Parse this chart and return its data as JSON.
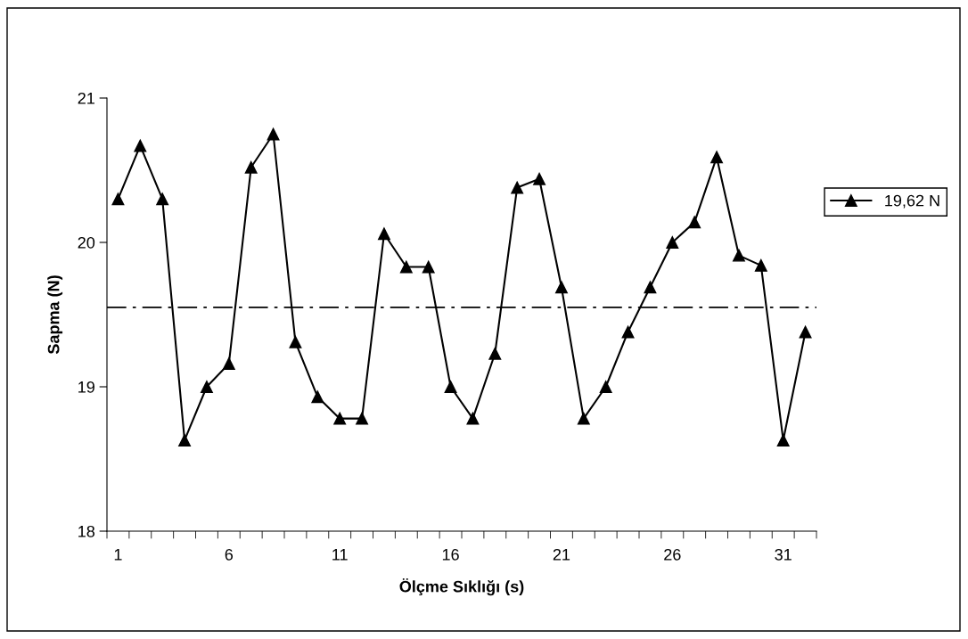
{
  "chart_data": {
    "type": "line",
    "xlabel": "Ölçme Sıklığı (s)",
    "ylabel": "Sapma (N)",
    "categories": [
      "1",
      null,
      null,
      null,
      null,
      "6",
      null,
      null,
      null,
      null,
      "11",
      null,
      null,
      null,
      null,
      "16",
      null,
      null,
      null,
      null,
      "21",
      null,
      null,
      null,
      null,
      "26",
      null,
      null,
      null,
      null,
      "31",
      null
    ],
    "series": [
      {
        "name": "19,62 N",
        "color": "#000000",
        "values": [
          20.3,
          20.67,
          20.3,
          18.63,
          19.0,
          19.16,
          20.52,
          20.75,
          19.31,
          18.93,
          18.78,
          18.78,
          20.06,
          19.83,
          19.83,
          19.0,
          18.78,
          19.23,
          20.38,
          20.44,
          19.69,
          18.78,
          19.0,
          19.38,
          19.69,
          20.0,
          20.14,
          20.59,
          19.91,
          19.84,
          18.63,
          19.38
        ]
      }
    ],
    "ylim": [
      18,
      21
    ],
    "yticks": [
      18,
      19,
      20,
      21
    ],
    "ref_lines": [
      {
        "axis": "y",
        "value": 19.55,
        "color": "#000000",
        "line_style": "dashdot"
      }
    ],
    "marker": "triangle",
    "line_style": "solid",
    "grid": false,
    "legend": "right"
  }
}
